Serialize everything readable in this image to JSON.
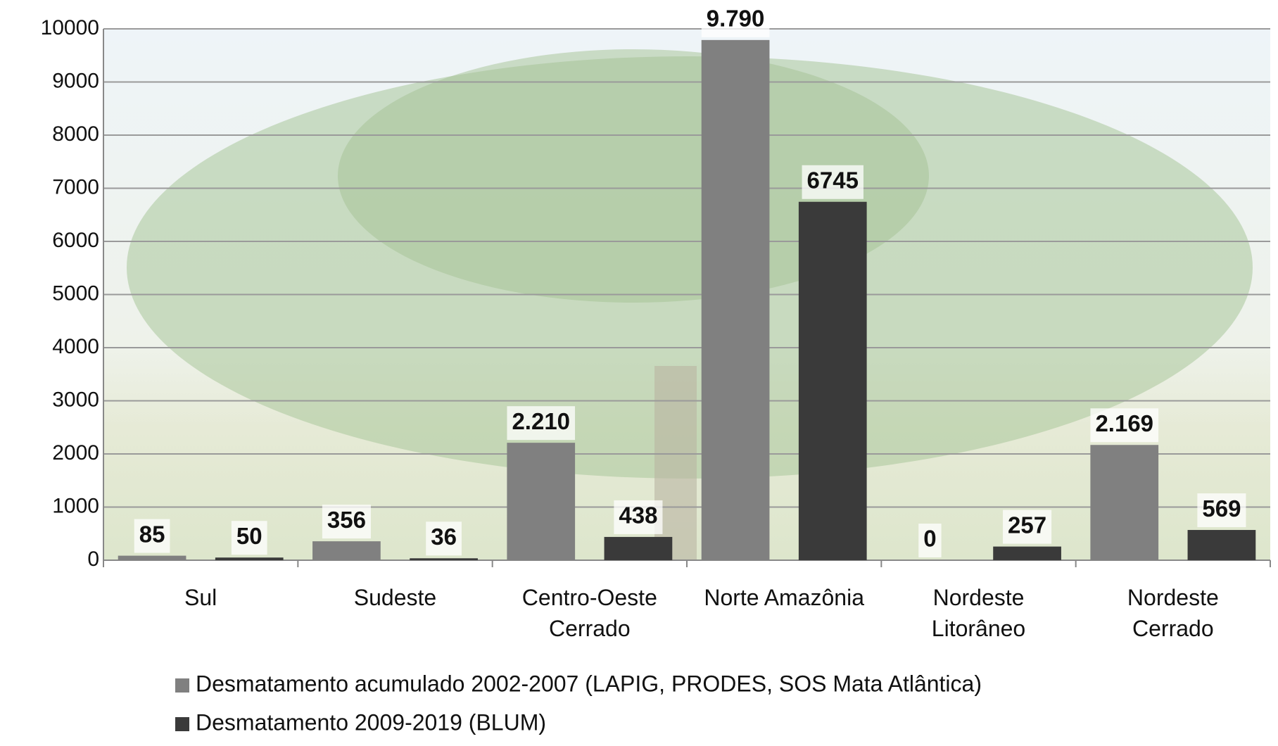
{
  "chart_data": {
    "type": "bar",
    "categories": [
      "Sul",
      "Sudeste",
      "Centro-Oeste\nCerrado",
      "Norte Amazônia",
      "Nordeste\nLitorâneo",
      "Nordeste\nCerrado"
    ],
    "series": [
      {
        "name": "Desmatamento acumulado 2002-2007 (LAPIG, PRODES, SOS Mata Atlântica)",
        "color": "#808080",
        "values": [
          85,
          356,
          2210,
          9790,
          0,
          2169
        ],
        "value_labels": [
          "85",
          "356",
          "2.210",
          "9.790",
          "0",
          "2.169"
        ]
      },
      {
        "name": "Desmatamento 2009-2019 (BLUM)",
        "color": "#3a3a3a",
        "values": [
          50,
          36,
          438,
          6745,
          257,
          569
        ]
      }
    ],
    "ylim": [
      0,
      10000
    ],
    "yticks": [
      0,
      1000,
      2000,
      3000,
      4000,
      5000,
      6000,
      7000,
      8000,
      9000,
      10000
    ],
    "grid": true,
    "legend": "bottom"
  }
}
